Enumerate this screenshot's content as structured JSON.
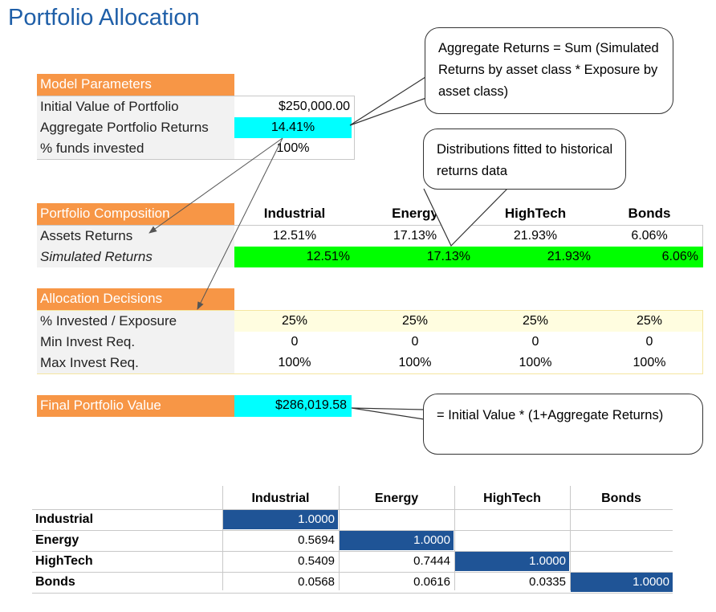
{
  "title": "Portfolio Allocation",
  "model_parameters": {
    "header": "Model Parameters",
    "initial_value_label": "Initial Value of Portfolio",
    "initial_value": "$250,000.00",
    "aggregate_returns_label": "Aggregate Portfolio Returns",
    "aggregate_returns": "14.41%",
    "funds_invested_label": "% funds invested",
    "funds_invested": "100%"
  },
  "composition": {
    "header": "Portfolio Composition",
    "columns": [
      "Industrial",
      "Energy",
      "HighTech",
      "Bonds"
    ],
    "asset_returns_label": "Assets Returns",
    "asset_returns": [
      "12.51%",
      "17.13%",
      "21.93%",
      "6.06%"
    ],
    "simulated_label": "Simulated Returns",
    "simulated": [
      "12.51%",
      "17.13%",
      "21.93%",
      "6.06%"
    ]
  },
  "allocation": {
    "header": "Allocation Decisions",
    "invested_label": "% Invested / Exposure",
    "invested": [
      "25%",
      "25%",
      "25%",
      "25%"
    ],
    "min_label": "Min Invest Req.",
    "min": [
      "0",
      "0",
      "0",
      "0"
    ],
    "max_label": "Max Invest Req.",
    "max": [
      "100%",
      "100%",
      "100%",
      "100%"
    ]
  },
  "final": {
    "label": "Final Portfolio Value",
    "value": "$286,019.58"
  },
  "callouts": {
    "aggregate": "Aggregate  Returns = Sum (Simulated Returns by asset class * Exposure by asset class)",
    "distributions": "Distributions fitted to historical returns data",
    "final": "= Initial Value * (1+Aggregate Returns)"
  },
  "correlation": {
    "columns": [
      "Industrial",
      "Energy",
      "HighTech",
      "Bonds"
    ],
    "rows": [
      {
        "name": "Industrial",
        "values": [
          "1.0000",
          "",
          "",
          ""
        ]
      },
      {
        "name": "Energy",
        "values": [
          "0.5694",
          "1.0000",
          "",
          ""
        ]
      },
      {
        "name": "HighTech",
        "values": [
          "0.5409",
          "0.7444",
          "1.0000",
          ""
        ]
      },
      {
        "name": "Bonds",
        "values": [
          "0.0568",
          "0.0616",
          "0.0335",
          "1.0000"
        ]
      }
    ]
  },
  "colors": {
    "header_orange": "#f79646",
    "title_blue": "#1f5fa8",
    "highlight_cyan": "#00ffff",
    "simulated_green": "#00ff00",
    "diagonal_blue": "#1f5496"
  }
}
